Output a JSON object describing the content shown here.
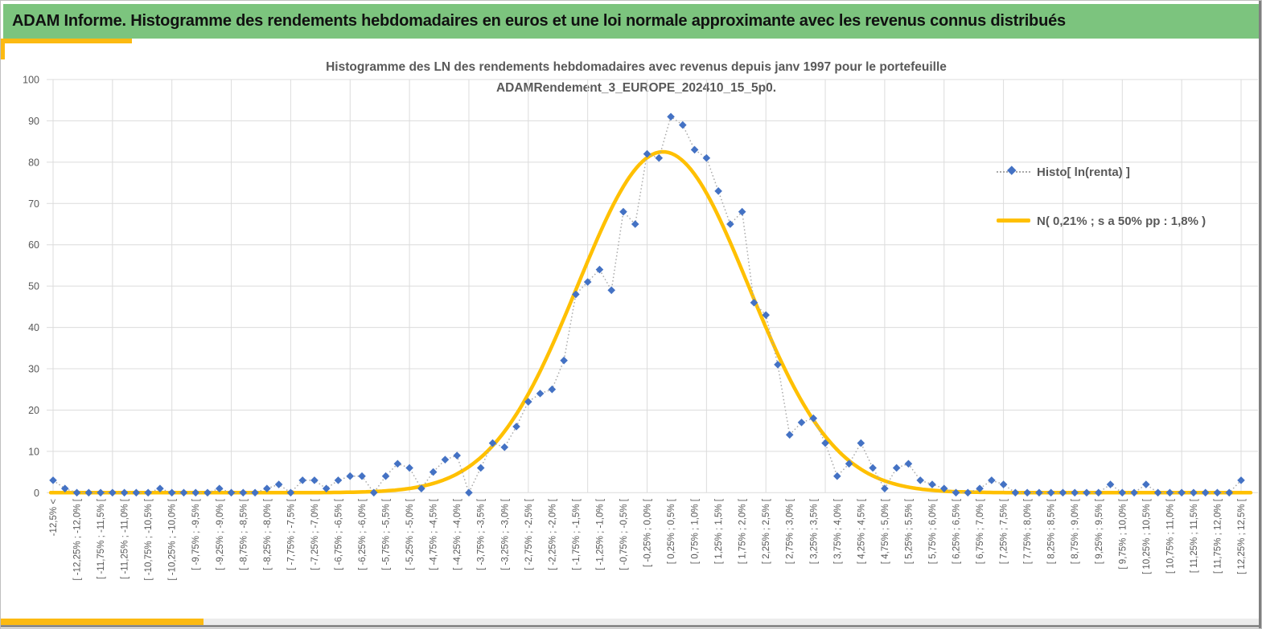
{
  "header": {
    "title": "ADAM Informe. Histogramme des rendements hebdomadaires en euros et une loi normale approximante avec les revenus connus distribués"
  },
  "chart": {
    "title_line1": "Histogramme des LN des rendements hebdomadaires avec revenus depuis janv 1997 pour le portefeuille",
    "title_line2": "ADAMRendement_3_EUROPE_202410_15_5p0.",
    "legend": [
      {
        "label": "Histo[ ln(renta) ]",
        "marker": "blue-diamond-dotted-line"
      },
      {
        "label": "N( 0,21% ; s a 50% pp : 1,8% )",
        "marker": "yellow-line"
      }
    ]
  },
  "chart_data": {
    "type": "line",
    "title": "Histogramme des LN des rendements hebdomadaires avec revenus depuis janv 1997 pour le portefeuille ADAMRendement_3_EUROPE_202410_15_5p0.",
    "xlabel": "",
    "ylabel": "",
    "ylim": [
      0,
      100
    ],
    "yticks": [
      0,
      10,
      20,
      30,
      40,
      50,
      60,
      70,
      80,
      90,
      100
    ],
    "grid": true,
    "legend_position": "right",
    "bin_width_pct": 0.25,
    "x_range_pct": [
      -12.5,
      12.5
    ],
    "x_labels": [
      "-12,5% <",
      "[ -12,25% ; -12,0% [",
      "[ -11,75% ; -11,5% [",
      "[ -11,25% ; -11,0% [",
      "[ -10,75% ; -10,5% [",
      "[ -10,25% ; -10,0% [",
      "[ -9,75% ; -9,5% [",
      "[ -9,25% ; -9,0% [",
      "[ -8,75% ; -8,5% [",
      "[ -8,25% ; -8,0% [",
      "[ -7,75% ; -7,5% [",
      "[ -7,25% ; -7,0% [",
      "[ -6,75% ; -6,5% [",
      "[ -6,25% ; -6,0% [",
      "[ -5,75% ; -5,5% [",
      "[ -5,25% ; -5,0% [",
      "[ -4,75% ; -4,5% [",
      "[ -4,25% ; -4,0% [",
      "[ -3,75% ; -3,5% [",
      "[ -3,25% ; -3,0% [",
      "[ -2,75% ; -2,5% [",
      "[ -2,25% ; -2,0% [",
      "[ -1,75% ; -1,5% [",
      "[ -1,25% ; -1,0% [",
      "[ -0,75% ; -0,5% [",
      "[ -0,25% ; 0,0% [",
      "[ 0,25% ; 0,5% [",
      "[ 0,75% ; 1,0% [",
      "[ 1,25% ; 1,5% [",
      "[ 1,75% ; 2,0% [",
      "[ 2,25% ; 2,5% [",
      "[ 2,75% ; 3,0% [",
      "[ 3,25% ; 3,5% [",
      "[ 3,75% ; 4,0% [",
      "[ 4,25% ; 4,5% [",
      "[ 4,75% ; 5,0% [",
      "[ 5,25% ; 5,5% [",
      "[ 5,75% ; 6,0% [",
      "[ 6,25% ; 6,5% [",
      "[ 6,75% ; 7,0% [",
      "[ 7,25% ; 7,5% [",
      "[ 7,75% ; 8,0% [",
      "[ 8,25% ; 8,5% [",
      "[ 8,75% ; 9,0% [",
      "[ 9,25% ; 9,5% [",
      "[ 9,75% ; 10,0% [",
      "[ 10,25% ; 10,5% [",
      "[ 10,75% ; 11,0% [",
      "[ 11,25% ; 11,5% [",
      "[ 11,75% ; 12,0% [",
      "[ 12,25% ; 12,5% ["
    ],
    "x_labels_note": "labels apply to every 2nd data point (even indices); intermediate 0,25% bins are unlabeled",
    "series": [
      {
        "name": "Histo[ ln(renta) ]",
        "style": "blue diamond markers with dotted gray connector",
        "values": [
          3,
          1,
          0,
          0,
          0,
          0,
          0,
          0,
          0,
          1,
          0,
          0,
          0,
          0,
          1,
          0,
          0,
          0,
          1,
          2,
          0,
          3,
          3,
          1,
          3,
          4,
          4,
          0,
          4,
          7,
          6,
          1,
          5,
          8,
          9,
          0,
          6,
          12,
          11,
          16,
          22,
          24,
          25,
          32,
          48,
          51,
          54,
          49,
          68,
          65,
          82,
          81,
          91,
          89,
          83,
          81,
          73,
          65,
          68,
          46,
          43,
          31,
          14,
          17,
          18,
          12,
          4,
          7,
          12,
          6,
          1,
          6,
          7,
          3,
          2,
          1,
          0,
          0,
          1,
          3,
          2,
          0,
          0,
          0,
          0,
          0,
          0,
          0,
          0,
          2,
          0,
          0,
          2,
          0,
          0,
          0,
          0,
          0,
          0,
          0,
          3
        ]
      }
    ],
    "normal_curve": {
      "label": "N( 0,21% ; s a 50% pp : 1,8% )",
      "mean_pct": 0.21,
      "sigma_pct": 1.8,
      "peak_height": 82.5
    },
    "colors": {
      "histogram_marker": "#4472c4",
      "histogram_connector": "#a8a8a8",
      "normal_curve": "#ffc000",
      "gridline": "#dcdcdc",
      "axis_text": "#595959",
      "title_text": "#595959",
      "header_bg": "#7cc47e",
      "accent_bar": "#fcba12"
    }
  }
}
